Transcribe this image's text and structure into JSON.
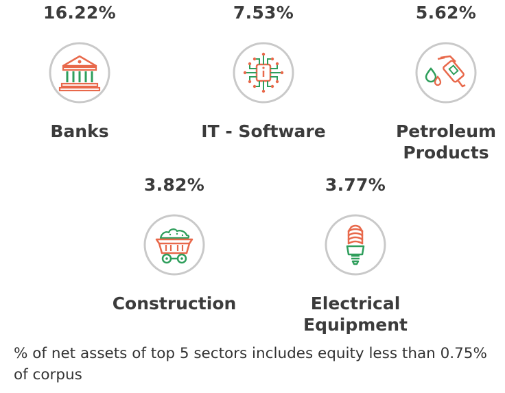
{
  "sectors": [
    {
      "pct": "16.22%",
      "name": "Banks",
      "icon": "bank-icon"
    },
    {
      "pct": "7.53%",
      "name": "IT - Software",
      "icon": "circuit-chip-icon"
    },
    {
      "pct": "5.62%",
      "name": "Petroleum\nProducts",
      "icon": "fuel-nozzle-icon"
    },
    {
      "pct": "3.82%",
      "name": "Construction",
      "icon": "mine-cart-icon"
    },
    {
      "pct": "3.77%",
      "name": "Electrical\nEquipment",
      "icon": "cfl-bulb-icon"
    }
  ],
  "footnote": "% of net assets of top 5 sectors includes equity less than 0.75% of corpus",
  "colors": {
    "accent_green": "#2e9e5b",
    "accent_orange": "#e8684a",
    "ring": "#c9c9c9",
    "text": "#3b3b3b"
  }
}
